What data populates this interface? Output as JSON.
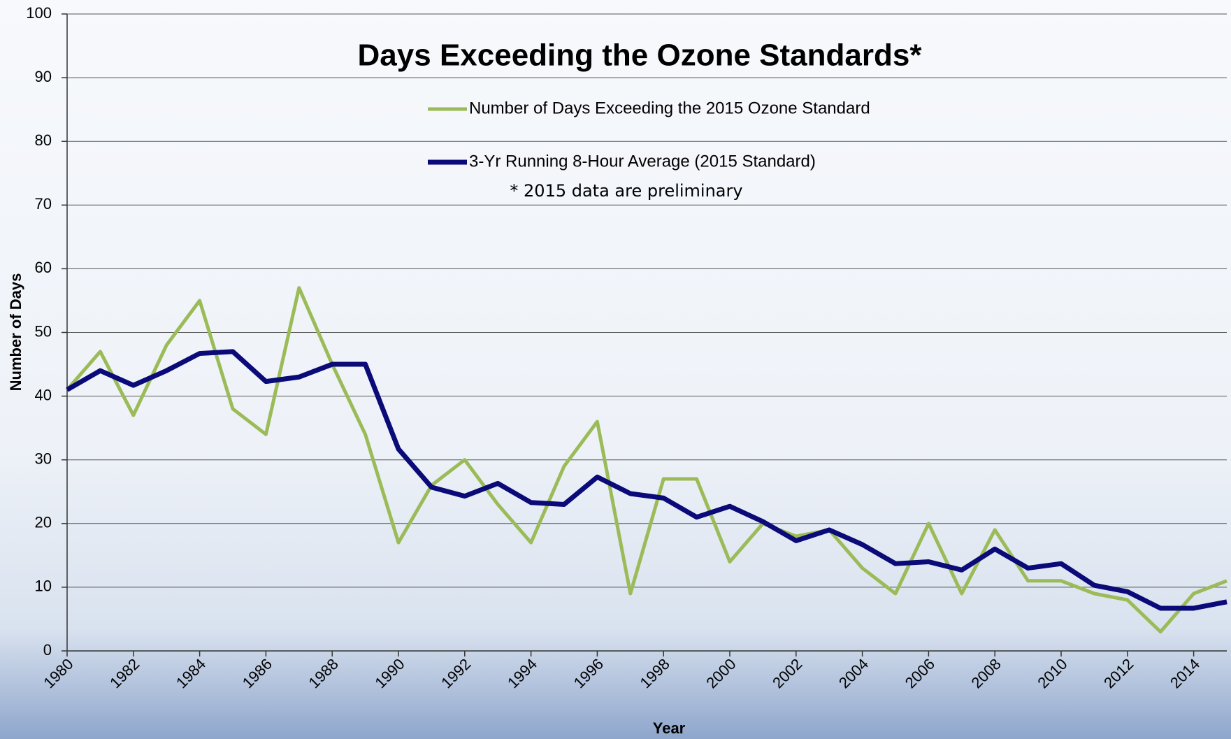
{
  "chart_data": {
    "type": "line",
    "title": "Days Exceeding the Ozone Standards*",
    "annotation": "* 2015 data are preliminary",
    "x_label": "Year",
    "y_label": "Number of Days",
    "x": [
      1980,
      1981,
      1982,
      1983,
      1984,
      1985,
      1986,
      1987,
      1988,
      1989,
      1990,
      1991,
      1992,
      1993,
      1994,
      1995,
      1996,
      1997,
      1998,
      1999,
      2000,
      2001,
      2002,
      2003,
      2004,
      2005,
      2006,
      2007,
      2008,
      2009,
      2010,
      2011,
      2012,
      2013,
      2014,
      2015
    ],
    "series": [
      {
        "name": "Number of Days Exceeding the 2015 Ozone Standard",
        "color": "#9bbb59",
        "values": [
          41,
          47,
          37,
          48,
          55,
          38,
          34,
          57,
          45,
          34,
          17,
          26,
          30,
          23,
          17,
          29,
          36,
          9,
          27,
          27,
          14,
          20,
          18,
          19,
          13,
          9,
          20,
          9,
          19,
          11,
          11,
          9,
          8,
          3,
          9,
          11
        ]
      },
      {
        "name": "3-Yr Running 8-Hour Average (2015 Standard)",
        "color": "#0a0a78",
        "values": [
          41,
          44,
          41.7,
          44,
          46.7,
          47,
          42.3,
          43,
          45,
          45,
          31.7,
          25.7,
          24.3,
          26.3,
          23.3,
          23,
          27.3,
          24.7,
          24,
          21,
          22.7,
          20.3,
          17.3,
          19,
          16.7,
          13.7,
          14,
          12.7,
          16,
          13,
          13.7,
          10.3,
          9.3,
          6.7,
          6.7,
          7.7
        ]
      }
    ],
    "xlim": [
      1980,
      2015
    ],
    "xticks": [
      1980,
      1982,
      1984,
      1986,
      1988,
      1990,
      1992,
      1994,
      1996,
      1998,
      2000,
      2002,
      2004,
      2006,
      2008,
      2010,
      2012,
      2014
    ],
    "ylim": [
      0,
      100
    ],
    "yticks": [
      0,
      10,
      20,
      30,
      40,
      50,
      60,
      70,
      80,
      90,
      100
    ],
    "grid": true
  }
}
